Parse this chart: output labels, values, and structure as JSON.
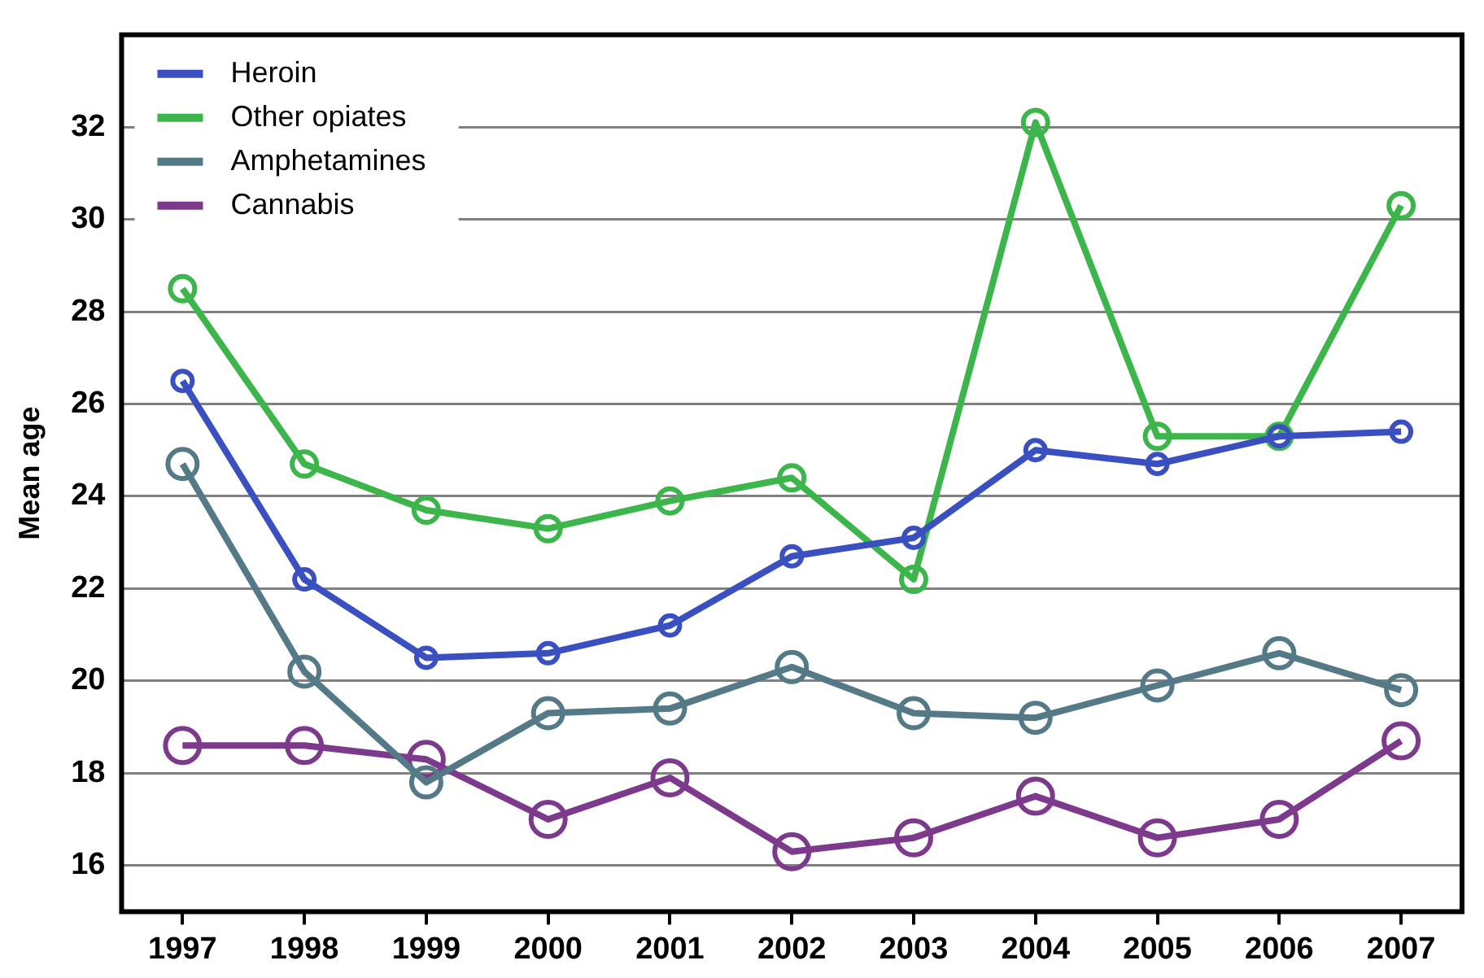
{
  "chart_data": {
    "type": "line",
    "ylabel": "Mean age",
    "categories": [
      "1997",
      "1998",
      "1999",
      "2000",
      "2001",
      "2002",
      "2003",
      "2004",
      "2005",
      "2006",
      "2007"
    ],
    "series": [
      {
        "name": "Heroin",
        "color": "#3a4fc0",
        "values": [
          26.5,
          22.2,
          20.5,
          20.6,
          21.2,
          22.7,
          23.1,
          25.0,
          24.7,
          25.3,
          25.4
        ]
      },
      {
        "name": "Other opiates",
        "color": "#3cb54a",
        "values": [
          28.5,
          24.7,
          23.7,
          23.3,
          23.9,
          24.4,
          22.2,
          32.1,
          25.3,
          25.3,
          30.3
        ]
      },
      {
        "name": "Amphetamines",
        "color": "#557a87",
        "values": [
          24.7,
          20.2,
          17.8,
          19.3,
          19.4,
          20.3,
          19.3,
          19.2,
          19.9,
          20.6,
          19.8
        ]
      },
      {
        "name": "Cannabis",
        "color": "#7d3a8c",
        "values": [
          18.6,
          18.6,
          18.3,
          17.0,
          17.9,
          16.3,
          16.6,
          17.5,
          16.6,
          17.0,
          18.7
        ]
      }
    ],
    "ylim": [
      15,
      34
    ],
    "yticks": [
      16,
      18,
      20,
      22,
      24,
      26,
      28,
      30,
      32
    ],
    "grid": "y",
    "legend": "top left",
    "marker": "circle",
    "line_style": "solid"
  }
}
